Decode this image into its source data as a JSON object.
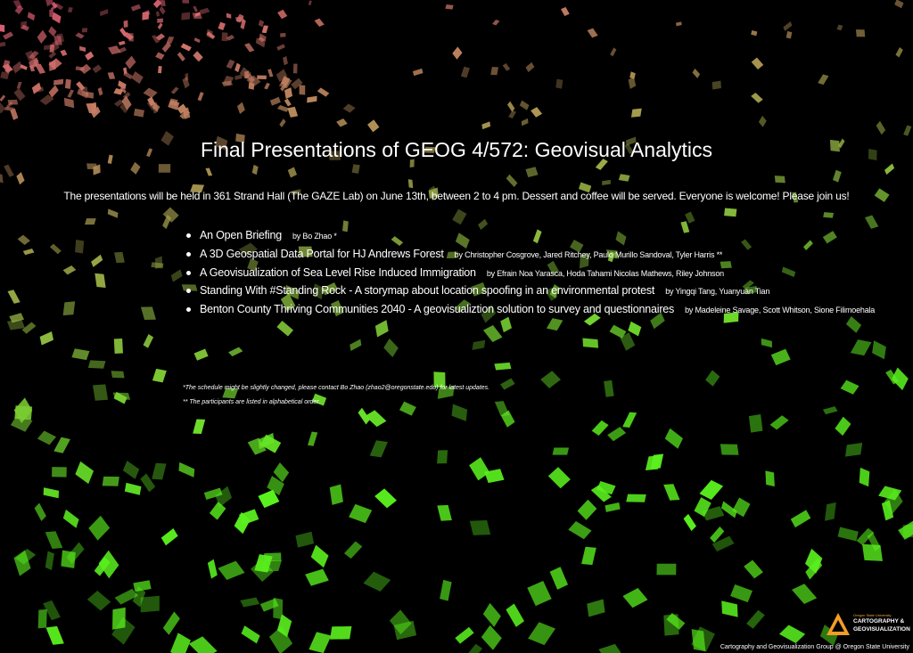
{
  "header": {
    "title": "Final Presentations of GEOG 4/572: Geovisual Analytics",
    "intro": "The presentations will be held in 361 Strand Hall (The GAZE Lab) on June 13th, between 2 to 4 pm. Dessert and coffee will be served. Everyone is welcome! Please join us!"
  },
  "presentations": [
    {
      "title": "An Open Briefing",
      "authors": "by Bo Zhao *"
    },
    {
      "title": "A 3D Geospatial Data Portal for HJ Andrews Forest",
      "authors": "by Christopher Cosgrove, Jared Ritchey, Paulo Murillo Sandoval, Tyler Harris **"
    },
    {
      "title": "A Geovisualization of Sea Level Rise Induced Immigration",
      "authors": "by Efrain Noa Yarasca, Hoda Tahami Nicolas Mathews, Riley Johnson"
    },
    {
      "title": "Standing With #Standing Rock - A storymap about location spoofing in an environmental protest",
      "authors": "by Yingqi Tang, Yuanyuan Tian"
    },
    {
      "title": "Benton County Thriving Communities 2040 - A geovisualiztion solution to survey and questionnaires",
      "authors": "by Madeleine Savage, Scott Whitson, Sione Filimoehala"
    }
  ],
  "notes": [
    "*The schedule might be slightly changed, please contact Bo Zhao (zhao2@oregonstate.edu) for latest updates.",
    "** The participants are listed in alphabetical order."
  ],
  "logo": {
    "university": "Oregon State University",
    "line1": "CARTOGRAPHY &",
    "line2": "GEOVISUALIZATION"
  },
  "footer": "Cartography and Geovisualization Group @ Oregon State University"
}
